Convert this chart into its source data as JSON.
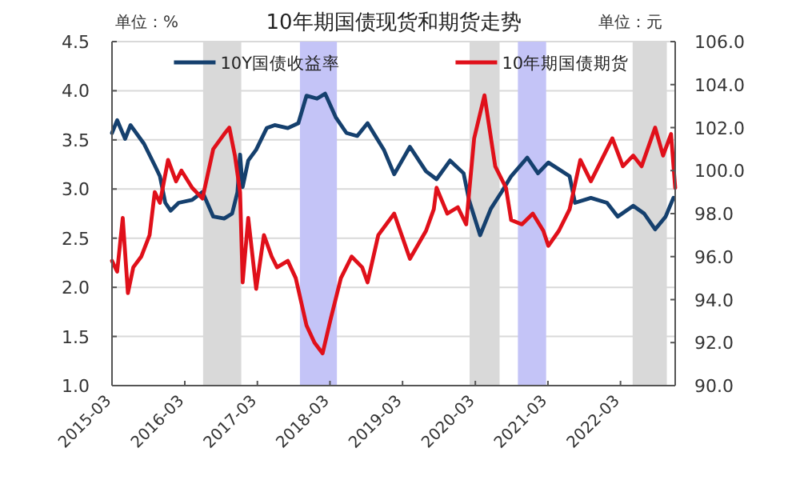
{
  "chart_data": {
    "type": "line",
    "title": "10年期国债现货和期货走势",
    "ylabel": "单位：%",
    "y2label": "单位：元",
    "xlim": [
      "2015-03-01",
      "2022-12-01"
    ],
    "xticks": [
      {
        "value": "2015-03",
        "label": "2015-03"
      },
      {
        "value": "2016-03",
        "label": "2016-03"
      },
      {
        "value": "2017-03",
        "label": "2017-03"
      },
      {
        "value": "2018-03",
        "label": "2018-03"
      },
      {
        "value": "2019-03",
        "label": "2019-03"
      },
      {
        "value": "2020-03",
        "label": "2020-03"
      },
      {
        "value": "2021-03",
        "label": "2021-03"
      },
      {
        "value": "2022-03",
        "label": "2022-03"
      }
    ],
    "ylim": [
      1.0,
      4.5
    ],
    "yticks": [
      {
        "value": 1.0,
        "label": "1.0"
      },
      {
        "value": 1.5,
        "label": "1.5"
      },
      {
        "value": 2.0,
        "label": "2.0"
      },
      {
        "value": 2.5,
        "label": "2.5"
      },
      {
        "value": 3.0,
        "label": "3.0"
      },
      {
        "value": 3.5,
        "label": "3.5"
      },
      {
        "value": 4.0,
        "label": "4.0"
      },
      {
        "value": 4.5,
        "label": "4.5"
      }
    ],
    "y2lim": [
      90.0,
      106.0
    ],
    "y2ticks": [
      {
        "value": 90,
        "label": "90.0"
      },
      {
        "value": 92,
        "label": "92.0"
      },
      {
        "value": 94,
        "label": "94.0"
      },
      {
        "value": 96,
        "label": "96.0"
      },
      {
        "value": 98,
        "label": "98.0"
      },
      {
        "value": 100,
        "label": "100.0"
      },
      {
        "value": 102,
        "label": "102.0"
      },
      {
        "value": 104,
        "label": "104.0"
      },
      {
        "value": 106,
        "label": "106.0"
      }
    ],
    "grid": "y",
    "legend": "top",
    "line_style": "solid",
    "bands": [
      {
        "axis": "x",
        "from": "2016-06-01",
        "to": "2016-12-10",
        "label": null,
        "color": "#d9d9d9"
      },
      {
        "axis": "x",
        "from": "2017-10-01",
        "to": "2018-04-05",
        "label": null,
        "color": "#c4c4f7"
      },
      {
        "axis": "x",
        "from": "2020-02-01",
        "to": "2020-07-01",
        "label": null,
        "color": "#d9d9d9"
      },
      {
        "axis": "x",
        "from": "2020-10-01",
        "to": "2021-02-20",
        "label": null,
        "color": "#c4c4f7"
      },
      {
        "axis": "x",
        "from": "2022-05-01",
        "to": "2022-10-20",
        "label": null,
        "color": "#d9d9d9"
      }
    ],
    "series": [
      {
        "name": "10Y国债收益率",
        "color": "#15406e",
        "x": [
          "2015-03-01",
          "2015-03-27",
          "2015-05-06",
          "2015-06-02",
          "2015-08-09",
          "2015-10-02",
          "2015-10-28",
          "2015-11-24",
          "2015-12-21",
          "2016-01-30",
          "2016-04-07",
          "2016-05-29",
          "2016-07-22",
          "2016-09-15",
          "2016-10-25",
          "2016-11-21",
          "2016-12-04",
          "2016-12-17",
          "2017-01-14",
          "2017-02-23",
          "2017-04-17",
          "2017-05-27",
          "2017-08-01",
          "2017-09-23",
          "2017-11-03",
          "2017-12-26",
          "2018-02-05",
          "2018-03-30",
          "2018-05-23",
          "2018-07-16",
          "2018-09-06",
          "2018-11-27",
          "2019-01-18",
          "2019-04-07",
          "2019-06-27",
          "2019-08-19",
          "2019-10-26",
          "2020-01-02",
          "2020-01-29",
          "2020-03-25",
          "2020-05-18",
          "2020-07-11",
          "2020-08-28",
          "2020-11-17",
          "2021-01-10",
          "2021-03-03",
          "2021-06-18",
          "2021-07-15",
          "2021-10-03",
          "2021-12-23",
          "2022-02-15",
          "2022-05-04",
          "2022-06-28",
          "2022-08-22",
          "2022-10-14",
          "2022-11-22"
        ],
        "values": [
          3.57,
          3.7,
          3.51,
          3.65,
          3.46,
          3.24,
          3.13,
          2.86,
          2.78,
          2.86,
          2.89,
          2.97,
          2.72,
          2.7,
          2.75,
          2.97,
          3.35,
          3.02,
          3.29,
          3.4,
          3.62,
          3.65,
          3.62,
          3.67,
          3.95,
          3.92,
          3.97,
          3.73,
          3.57,
          3.54,
          3.67,
          3.4,
          3.15,
          3.43,
          3.18,
          3.1,
          3.29,
          3.16,
          2.89,
          2.53,
          2.8,
          2.97,
          3.13,
          3.32,
          3.16,
          3.27,
          3.13,
          2.86,
          2.91,
          2.86,
          2.72,
          2.83,
          2.75,
          2.59,
          2.72,
          2.91
        ]
      },
      {
        "name": "10年期国债期货",
        "color": "#e0101a",
        "axis": "y2",
        "x": [
          "2015-03-01",
          "2015-03-27",
          "2015-04-24",
          "2015-05-20",
          "2015-06-16",
          "2015-07-26",
          "2015-09-06",
          "2015-10-02",
          "2015-10-28",
          "2015-12-08",
          "2016-01-17",
          "2016-02-13",
          "2016-04-07",
          "2016-05-29",
          "2016-07-22",
          "2016-09-15",
          "2016-10-11",
          "2016-11-08",
          "2016-12-04",
          "2016-12-17",
          "2017-01-14",
          "2017-02-23",
          "2017-04-03",
          "2017-05-12",
          "2017-06-08",
          "2017-08-01",
          "2017-09-10",
          "2017-11-03",
          "2017-12-13",
          "2018-01-23",
          "2018-03-02",
          "2018-04-25",
          "2018-06-18",
          "2018-08-10",
          "2018-09-06",
          "2018-10-30",
          "2019-01-18",
          "2019-04-07",
          "2019-06-27",
          "2019-08-05",
          "2019-08-19",
          "2019-10-12",
          "2019-12-04",
          "2020-01-15",
          "2020-02-24",
          "2020-04-16",
          "2020-06-09",
          "2020-08-02",
          "2020-08-28",
          "2020-10-21",
          "2020-12-15",
          "2021-02-06",
          "2021-03-03",
          "2021-04-25",
          "2021-06-18",
          "2021-08-11",
          "2021-10-03",
          "2022-01-19",
          "2022-03-13",
          "2022-05-04",
          "2022-06-15",
          "2022-08-22",
          "2022-10-01",
          "2022-11-10",
          "2022-12-01"
        ],
        "values": [
          95.8,
          95.3,
          97.8,
          94.3,
          95.5,
          96.0,
          97.0,
          99.0,
          98.5,
          100.5,
          99.5,
          100.0,
          99.2,
          98.7,
          101.0,
          101.7,
          102.0,
          100.7,
          99.0,
          94.8,
          97.8,
          94.5,
          97.0,
          96.0,
          95.5,
          95.8,
          95.0,
          92.8,
          92.0,
          91.5,
          93.0,
          95.0,
          96.0,
          95.5,
          94.8,
          97.0,
          98.0,
          95.9,
          97.2,
          98.2,
          99.2,
          98.0,
          98.3,
          97.5,
          101.5,
          103.5,
          100.2,
          99.2,
          97.7,
          97.5,
          98.0,
          97.2,
          96.5,
          97.2,
          98.2,
          100.5,
          99.5,
          101.5,
          100.2,
          100.7,
          100.2,
          102.0,
          100.7,
          101.7,
          99.2
        ]
      }
    ]
  }
}
